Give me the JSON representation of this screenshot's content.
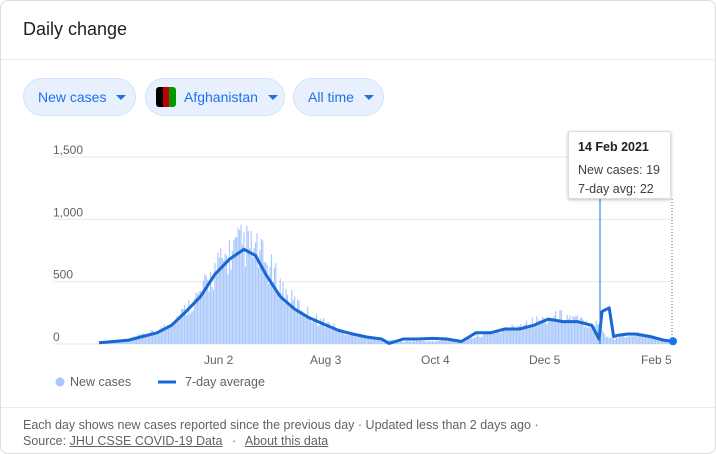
{
  "header": {
    "title": "Daily change"
  },
  "filters": {
    "metric": "New cases",
    "location": "Afghanistan",
    "range": "All time"
  },
  "flag_colors": [
    "#000000",
    "#be0000",
    "#009900"
  ],
  "tooltip": {
    "date": "14 Feb 2021",
    "new_cases_label": "New cases: 19",
    "avg_label": "7-day avg: 22"
  },
  "legend": {
    "bar_label": "New cases",
    "line_label": "7-day average"
  },
  "footer": {
    "note": "Each day shows new cases reported since the previous day · Updated less than 2 days ago ·",
    "source_prefix": "Source:",
    "source_link": "JHU CSSE COVID-19 Data",
    "separator": "·",
    "about_link": "About this data"
  },
  "colors": {
    "bar": "#a8c7fa",
    "line": "#1967d2",
    "accent": "#1a73e8",
    "grid": "#e8eaed"
  },
  "chart_data": {
    "type": "bar",
    "y_ticks": [
      "1,500",
      "1,000",
      "500",
      "0"
    ],
    "x_ticks": [
      "Jun 2",
      "Aug 3",
      "Oct 4",
      "Dec 5",
      "Feb 5"
    ],
    "ylim": [
      0,
      1500
    ],
    "series": [
      {
        "name": "New cases",
        "kind": "bar",
        "points": [
          [
            0,
            5
          ],
          [
            10,
            20
          ],
          [
            20,
            40
          ],
          [
            30,
            70
          ],
          [
            40,
            100
          ],
          [
            50,
            170
          ],
          [
            60,
            280
          ],
          [
            70,
            400
          ],
          [
            80,
            580
          ],
          [
            90,
            720
          ],
          [
            100,
            800
          ],
          [
            110,
            720
          ],
          [
            120,
            560
          ],
          [
            130,
            380
          ],
          [
            140,
            280
          ],
          [
            150,
            200
          ],
          [
            160,
            150
          ],
          [
            170,
            90
          ],
          [
            180,
            70
          ],
          [
            190,
            40
          ],
          [
            200,
            30
          ],
          [
            210,
            20
          ],
          [
            220,
            25
          ],
          [
            230,
            20
          ],
          [
            240,
            30
          ],
          [
            250,
            30
          ],
          [
            260,
            60
          ],
          [
            270,
            90
          ],
          [
            280,
            110
          ],
          [
            290,
            160
          ],
          [
            300,
            180
          ],
          [
            310,
            200
          ],
          [
            320,
            230
          ],
          [
            330,
            190
          ],
          [
            340,
            160
          ],
          [
            346,
            160
          ],
          [
            350,
            60
          ],
          [
            356,
            40
          ],
          [
            360,
            70
          ],
          [
            366,
            60
          ],
          [
            370,
            90
          ],
          [
            380,
            60
          ],
          [
            390,
            30
          ],
          [
            396,
            19
          ]
        ]
      },
      {
        "name": "7-day average",
        "kind": "line",
        "points": [
          [
            0,
            10
          ],
          [
            10,
            20
          ],
          [
            20,
            30
          ],
          [
            30,
            60
          ],
          [
            40,
            90
          ],
          [
            50,
            150
          ],
          [
            60,
            260
          ],
          [
            70,
            380
          ],
          [
            80,
            560
          ],
          [
            90,
            680
          ],
          [
            100,
            760
          ],
          [
            108,
            710
          ],
          [
            115,
            560
          ],
          [
            125,
            380
          ],
          [
            135,
            280
          ],
          [
            145,
            210
          ],
          [
            155,
            160
          ],
          [
            165,
            110
          ],
          [
            175,
            80
          ],
          [
            185,
            55
          ],
          [
            195,
            40
          ],
          [
            200,
            5
          ],
          [
            210,
            40
          ],
          [
            220,
            40
          ],
          [
            230,
            45
          ],
          [
            240,
            40
          ],
          [
            250,
            20
          ],
          [
            260,
            90
          ],
          [
            270,
            90
          ],
          [
            280,
            120
          ],
          [
            290,
            120
          ],
          [
            300,
            150
          ],
          [
            310,
            200
          ],
          [
            320,
            180
          ],
          [
            330,
            180
          ],
          [
            340,
            150
          ],
          [
            345,
            40
          ],
          [
            347,
            260
          ],
          [
            352,
            290
          ],
          [
            355,
            60
          ],
          [
            358,
            70
          ],
          [
            365,
            80
          ],
          [
            370,
            80
          ],
          [
            380,
            60
          ],
          [
            390,
            30
          ],
          [
            396,
            22
          ]
        ]
      }
    ],
    "x_range": [
      0,
      396
    ],
    "highlight_x": 396
  }
}
